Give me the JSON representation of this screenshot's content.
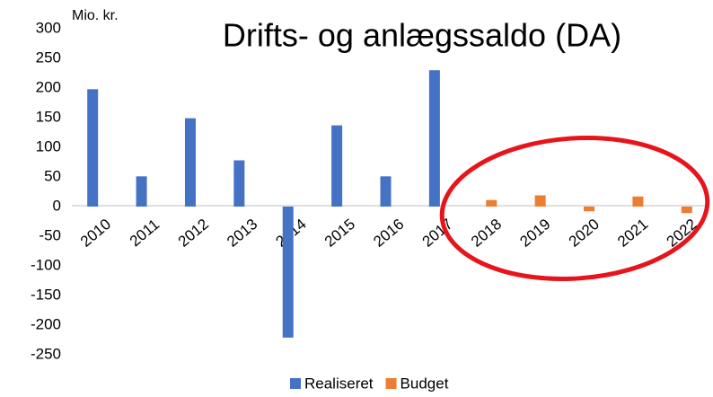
{
  "chart_data": {
    "type": "bar",
    "title": "Drifts- og anlægssaldo (DA)",
    "y_label": "Mio. kr.",
    "categories": [
      "2010",
      "2011",
      "2012",
      "2013",
      "2014",
      "2015",
      "2016",
      "2017",
      "2018",
      "2019",
      "2020",
      "2021",
      "2022"
    ],
    "series": [
      {
        "name": "Realiseret",
        "color": "#4472c4",
        "values": [
          198,
          51,
          149,
          78,
          -221,
          137,
          51,
          230,
          null,
          null,
          null,
          null,
          null
        ]
      },
      {
        "name": "Budget",
        "color": "#ed7d31",
        "values": [
          null,
          null,
          null,
          null,
          null,
          null,
          null,
          null,
          11,
          19,
          -8,
          17,
          -11
        ]
      }
    ],
    "ylim": [
      -250,
      300
    ],
    "yticks": [
      300,
      250,
      200,
      150,
      100,
      50,
      0,
      -50,
      -100,
      -150,
      -200,
      -250
    ],
    "legend": "bottom",
    "grid": false
  }
}
